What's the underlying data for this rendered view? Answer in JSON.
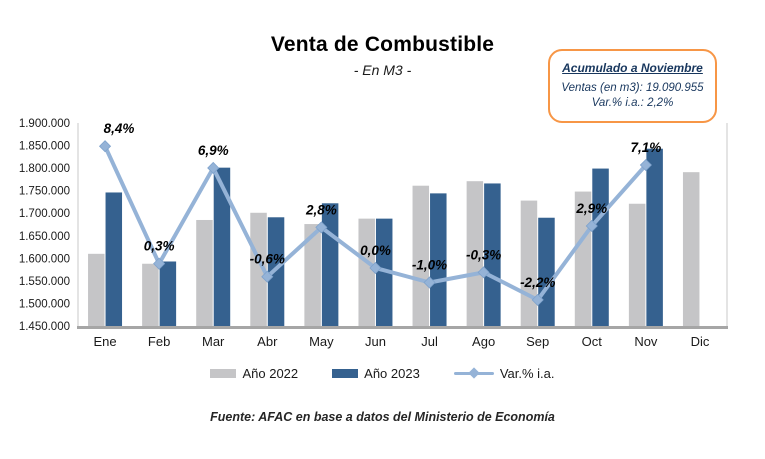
{
  "title": "Venta de Combustible",
  "subtitle": "- En M3 -",
  "annotation": {
    "title": "Acumulado a Noviembre",
    "line1": "Ventas (en m3):  19.090.955",
    "line2": "Var.% i.a.: 2,2%"
  },
  "footer": "Fuente: AFAC en base a datos del Ministerio de Economía",
  "colors": {
    "bar_2022": "#c5c5c7",
    "bar_2023": "#35618f",
    "line_var": "#95b3d7",
    "annotation_border": "#f79646",
    "annotation_text": "#17365d",
    "axis_line": "#a6a6a6",
    "plot_border": "#d2d2d2"
  },
  "chart_data": {
    "type": "bar+line",
    "title": "Venta de Combustible",
    "subtitle": "- En M3 -",
    "categories": [
      "Ene",
      "Feb",
      "Mar",
      "Abr",
      "May",
      "Jun",
      "Jul",
      "Ago",
      "Sep",
      "Oct",
      "Nov",
      "Dic"
    ],
    "series": [
      {
        "name": "Año 2022",
        "type": "bar",
        "color": "#c5c5c7",
        "values": [
          1610000,
          1588000,
          1685000,
          1701000,
          1676000,
          1688000,
          1761000,
          1771000,
          1728000,
          1748000,
          1721000,
          1791000
        ]
      },
      {
        "name": "Año 2023",
        "type": "bar",
        "color": "#35618f",
        "values": [
          1746000,
          1593000,
          1801000,
          1691000,
          1722000,
          1688000,
          1744000,
          1766000,
          1690000,
          1799000,
          1843000,
          null
        ]
      },
      {
        "name": "Var.% i.a.",
        "type": "line",
        "axis": "secondary",
        "color": "#95b3d7",
        "values": [
          8.4,
          0.3,
          6.9,
          -0.6,
          2.8,
          0.0,
          -1.0,
          -0.3,
          -2.2,
          2.9,
          7.1,
          null
        ],
        "labels": [
          "8,4%",
          "0,3%",
          "6,9%",
          "-0,6%",
          "2,8%",
          "0,0%",
          "-1,0%",
          "-0,3%",
          "-2,2%",
          "2,9%",
          "7,1%",
          null
        ]
      }
    ],
    "y_axis": {
      "min": 1450000,
      "max": 1900000,
      "step": 50000,
      "tick_labels": [
        "1.900.000",
        "1.850.000",
        "1.800.000",
        "1.750.000",
        "1.700.000",
        "1.650.000",
        "1.600.000",
        "1.550.000",
        "1.500.000",
        "1.450.000"
      ]
    },
    "secondary_axis": {
      "min": -4,
      "max": 10,
      "visible": false
    },
    "legend_position": "bottom",
    "grid": false
  }
}
